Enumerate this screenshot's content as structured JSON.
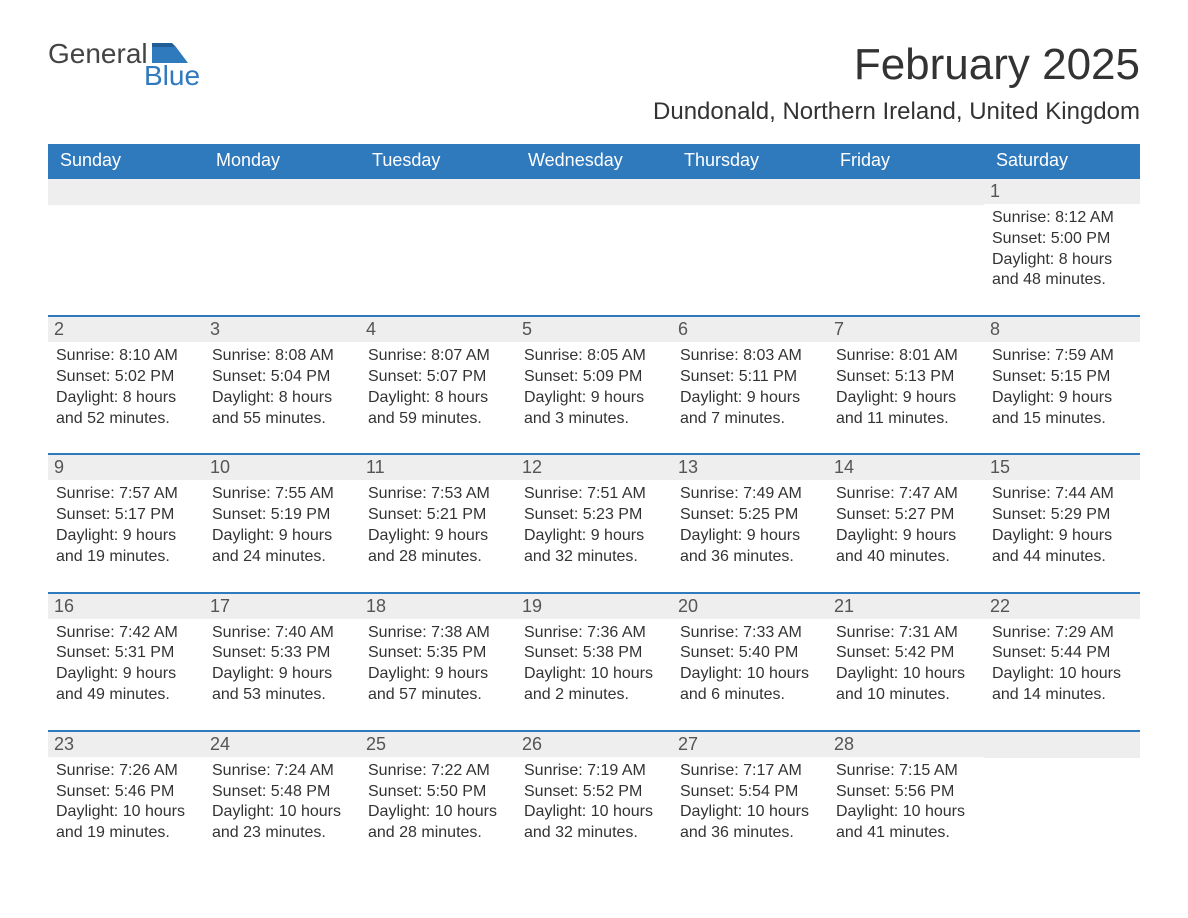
{
  "logo": {
    "text1": "General",
    "text2": "Blue"
  },
  "title": "February 2025",
  "location": "Dundonald, Northern Ireland, United Kingdom",
  "colors": {
    "header_bg": "#2f79bd",
    "header_fg": "#ffffff",
    "band_bg": "#eeeeee",
    "text": "#333333",
    "border": "#2f79bd"
  },
  "day_names": [
    "Sunday",
    "Monday",
    "Tuesday",
    "Wednesday",
    "Thursday",
    "Friday",
    "Saturday"
  ],
  "weeks": [
    [
      null,
      null,
      null,
      null,
      null,
      null,
      {
        "n": "1",
        "sr": "Sunrise: 8:12 AM",
        "ss": "Sunset: 5:00 PM",
        "dl": "Daylight: 8 hours and 48 minutes."
      }
    ],
    [
      {
        "n": "2",
        "sr": "Sunrise: 8:10 AM",
        "ss": "Sunset: 5:02 PM",
        "dl": "Daylight: 8 hours and 52 minutes."
      },
      {
        "n": "3",
        "sr": "Sunrise: 8:08 AM",
        "ss": "Sunset: 5:04 PM",
        "dl": "Daylight: 8 hours and 55 minutes."
      },
      {
        "n": "4",
        "sr": "Sunrise: 8:07 AM",
        "ss": "Sunset: 5:07 PM",
        "dl": "Daylight: 8 hours and 59 minutes."
      },
      {
        "n": "5",
        "sr": "Sunrise: 8:05 AM",
        "ss": "Sunset: 5:09 PM",
        "dl": "Daylight: 9 hours and 3 minutes."
      },
      {
        "n": "6",
        "sr": "Sunrise: 8:03 AM",
        "ss": "Sunset: 5:11 PM",
        "dl": "Daylight: 9 hours and 7 minutes."
      },
      {
        "n": "7",
        "sr": "Sunrise: 8:01 AM",
        "ss": "Sunset: 5:13 PM",
        "dl": "Daylight: 9 hours and 11 minutes."
      },
      {
        "n": "8",
        "sr": "Sunrise: 7:59 AM",
        "ss": "Sunset: 5:15 PM",
        "dl": "Daylight: 9 hours and 15 minutes."
      }
    ],
    [
      {
        "n": "9",
        "sr": "Sunrise: 7:57 AM",
        "ss": "Sunset: 5:17 PM",
        "dl": "Daylight: 9 hours and 19 minutes."
      },
      {
        "n": "10",
        "sr": "Sunrise: 7:55 AM",
        "ss": "Sunset: 5:19 PM",
        "dl": "Daylight: 9 hours and 24 minutes."
      },
      {
        "n": "11",
        "sr": "Sunrise: 7:53 AM",
        "ss": "Sunset: 5:21 PM",
        "dl": "Daylight: 9 hours and 28 minutes."
      },
      {
        "n": "12",
        "sr": "Sunrise: 7:51 AM",
        "ss": "Sunset: 5:23 PM",
        "dl": "Daylight: 9 hours and 32 minutes."
      },
      {
        "n": "13",
        "sr": "Sunrise: 7:49 AM",
        "ss": "Sunset: 5:25 PM",
        "dl": "Daylight: 9 hours and 36 minutes."
      },
      {
        "n": "14",
        "sr": "Sunrise: 7:47 AM",
        "ss": "Sunset: 5:27 PM",
        "dl": "Daylight: 9 hours and 40 minutes."
      },
      {
        "n": "15",
        "sr": "Sunrise: 7:44 AM",
        "ss": "Sunset: 5:29 PM",
        "dl": "Daylight: 9 hours and 44 minutes."
      }
    ],
    [
      {
        "n": "16",
        "sr": "Sunrise: 7:42 AM",
        "ss": "Sunset: 5:31 PM",
        "dl": "Daylight: 9 hours and 49 minutes."
      },
      {
        "n": "17",
        "sr": "Sunrise: 7:40 AM",
        "ss": "Sunset: 5:33 PM",
        "dl": "Daylight: 9 hours and 53 minutes."
      },
      {
        "n": "18",
        "sr": "Sunrise: 7:38 AM",
        "ss": "Sunset: 5:35 PM",
        "dl": "Daylight: 9 hours and 57 minutes."
      },
      {
        "n": "19",
        "sr": "Sunrise: 7:36 AM",
        "ss": "Sunset: 5:38 PM",
        "dl": "Daylight: 10 hours and 2 minutes."
      },
      {
        "n": "20",
        "sr": "Sunrise: 7:33 AM",
        "ss": "Sunset: 5:40 PM",
        "dl": "Daylight: 10 hours and 6 minutes."
      },
      {
        "n": "21",
        "sr": "Sunrise: 7:31 AM",
        "ss": "Sunset: 5:42 PM",
        "dl": "Daylight: 10 hours and 10 minutes."
      },
      {
        "n": "22",
        "sr": "Sunrise: 7:29 AM",
        "ss": "Sunset: 5:44 PM",
        "dl": "Daylight: 10 hours and 14 minutes."
      }
    ],
    [
      {
        "n": "23",
        "sr": "Sunrise: 7:26 AM",
        "ss": "Sunset: 5:46 PM",
        "dl": "Daylight: 10 hours and 19 minutes."
      },
      {
        "n": "24",
        "sr": "Sunrise: 7:24 AM",
        "ss": "Sunset: 5:48 PM",
        "dl": "Daylight: 10 hours and 23 minutes."
      },
      {
        "n": "25",
        "sr": "Sunrise: 7:22 AM",
        "ss": "Sunset: 5:50 PM",
        "dl": "Daylight: 10 hours and 28 minutes."
      },
      {
        "n": "26",
        "sr": "Sunrise: 7:19 AM",
        "ss": "Sunset: 5:52 PM",
        "dl": "Daylight: 10 hours and 32 minutes."
      },
      {
        "n": "27",
        "sr": "Sunrise: 7:17 AM",
        "ss": "Sunset: 5:54 PM",
        "dl": "Daylight: 10 hours and 36 minutes."
      },
      {
        "n": "28",
        "sr": "Sunrise: 7:15 AM",
        "ss": "Sunset: 5:56 PM",
        "dl": "Daylight: 10 hours and 41 minutes."
      },
      null
    ]
  ]
}
